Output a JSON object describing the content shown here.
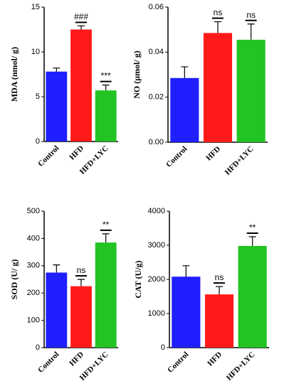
{
  "chart_data": [
    {
      "type": "bar",
      "y_label": "MDA (nmol/ g)",
      "categories": [
        "Control",
        "HFD",
        "HFD+LYC"
      ],
      "values": [
        7.8,
        12.5,
        5.7
      ],
      "errors": [
        0.4,
        0.4,
        0.6
      ],
      "annotations": [
        null,
        "###",
        "***"
      ],
      "colors": [
        "#1f1fff",
        "#ff1a1a",
        "#22c322"
      ],
      "ylim": [
        0,
        15
      ],
      "yticks": [
        0,
        5,
        10,
        15
      ]
    },
    {
      "type": "bar",
      "y_label": "NO (μmol/ g)",
      "categories": [
        "Control",
        "HFD",
        "HFD+LYC"
      ],
      "values": [
        0.0285,
        0.0485,
        0.0455
      ],
      "errors": [
        0.005,
        0.005,
        0.007
      ],
      "annotations": [
        null,
        "ns",
        "ns"
      ],
      "colors": [
        "#1f1fff",
        "#ff1a1a",
        "#22c322"
      ],
      "ylim": [
        0,
        0.06
      ],
      "yticks": [
        {
          "value": 0,
          "label": "0.00"
        },
        {
          "value": 0.02,
          "label": "0.02"
        },
        {
          "value": 0.04,
          "label": "0.04"
        },
        {
          "value": 0.06,
          "label": "0.06"
        }
      ]
    },
    {
      "type": "bar",
      "y_label": "SOD (U/ g)",
      "categories": [
        "Control",
        "HFD",
        "HFD+LYC"
      ],
      "values": [
        275,
        225,
        385
      ],
      "errors": [
        28,
        25,
        32
      ],
      "annotations": [
        null,
        "ns",
        "**"
      ],
      "colors": [
        "#1f1fff",
        "#ff1a1a",
        "#22c322"
      ],
      "ylim": [
        0,
        500
      ],
      "yticks": [
        0,
        100,
        200,
        300,
        400,
        500
      ]
    },
    {
      "type": "bar",
      "y_label": "CAT (U/g)",
      "categories": [
        "Control",
        "HFD",
        "HFD+LYC"
      ],
      "values": [
        2080,
        1560,
        2980
      ],
      "errors": [
        320,
        230,
        270
      ],
      "annotations": [
        null,
        "ns",
        "**"
      ],
      "colors": [
        "#1f1fff",
        "#ff1a1a",
        "#22c322"
      ],
      "ylim": [
        0,
        4000
      ],
      "yticks": [
        0,
        1000,
        2000,
        3000,
        4000
      ]
    }
  ]
}
